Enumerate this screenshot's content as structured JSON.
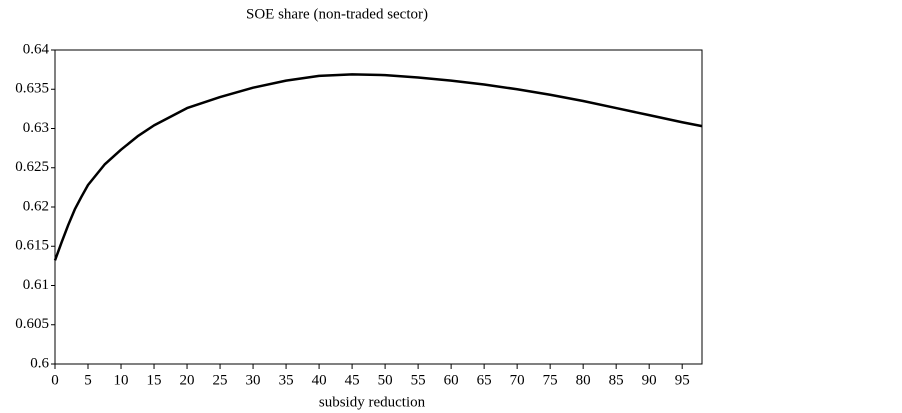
{
  "chart_data": {
    "type": "line",
    "title": "SOE share (non-traded sector)",
    "x_label": "subsidy reduction",
    "x": [
      0,
      1,
      2,
      3,
      4,
      5,
      7.5,
      10,
      12.5,
      15,
      20,
      25,
      30,
      35,
      40,
      45,
      50,
      55,
      60,
      65,
      70,
      75,
      80,
      85,
      90,
      95,
      98
    ],
    "values": [
      0.6132,
      0.6155,
      0.6177,
      0.6197,
      0.6213,
      0.6228,
      0.6254,
      0.6273,
      0.629,
      0.6304,
      0.6326,
      0.634,
      0.6352,
      0.6361,
      0.6367,
      0.6369,
      0.6368,
      0.6365,
      0.6361,
      0.6356,
      0.635,
      0.6343,
      0.6335,
      0.6326,
      0.6317,
      0.6308,
      0.6303
    ],
    "color": "#000000",
    "xlim": [
      0,
      98
    ],
    "xticks": [
      0,
      5,
      10,
      15,
      20,
      25,
      30,
      35,
      40,
      45,
      50,
      55,
      60,
      65,
      70,
      75,
      80,
      85,
      90,
      95
    ],
    "ylim": [
      0.6,
      0.64
    ],
    "yticks": [
      0.6,
      0.605,
      0.61,
      0.615,
      0.62,
      0.625,
      0.63,
      0.635,
      0.64
    ],
    "grid": false
  }
}
